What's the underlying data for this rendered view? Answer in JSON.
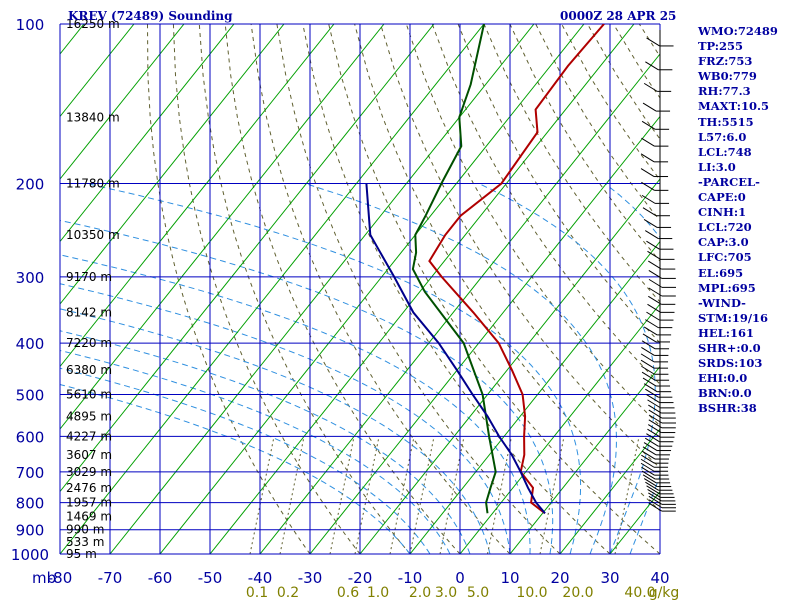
{
  "header": {
    "title": "KREV (72489) Sounding",
    "time": "0000Z 28 APR 25"
  },
  "indices": [
    "WMO:72489",
    "TP:255",
    "FRZ:753",
    "WB0:779",
    "RH:77.3",
    "MAXT:10.5",
    "TH:5515",
    "L57:6.0",
    "LCL:748",
    "LI:3.0",
    "-PARCEL-",
    "CAPE:0",
    "CINH:1",
    "LCL:720",
    "CAP:3.0",
    "LFC:705",
    "EL:695",
    "MPL:695",
    "-WIND-",
    "STM:19/16",
    "HEL:161",
    "SHR+:0.0",
    "SRDS:103",
    "EHI:0.0",
    "BRN:0.0",
    "BSHR:38"
  ],
  "chart_data": {
    "type": "line",
    "title": "KREV (72489) Sounding",
    "xlabel": "",
    "ylabel": "mb",
    "x_unit_label": "g/kg",
    "xlim": [
      -80,
      40
    ],
    "ylim": [
      1000,
      100
    ],
    "x_ticks": [
      -80,
      -70,
      -60,
      -50,
      -40,
      -30,
      -20,
      -10,
      0,
      10,
      20,
      30,
      40
    ],
    "pressure_ticks": [
      100,
      200,
      300,
      400,
      500,
      600,
      700,
      800,
      900,
      1000
    ],
    "mixing_ratio_labels": [
      "0.1",
      "0.2",
      "0.6",
      "1.0",
      "2.0",
      "3.0",
      "5.0",
      "10.0",
      "20.0",
      "40.0"
    ],
    "height_labels": [
      {
        "p": 100,
        "text": "16250 m"
      },
      {
        "p": 150,
        "text": "13840 m"
      },
      {
        "p": 200,
        "text": "11780 m"
      },
      {
        "p": 250,
        "text": "10350 m"
      },
      {
        "p": 300,
        "text": "9170 m"
      },
      {
        "p": 350,
        "text": "8142 m"
      },
      {
        "p": 400,
        "text": "7220 m"
      },
      {
        "p": 450,
        "text": "6380 m"
      },
      {
        "p": 500,
        "text": "5610 m"
      },
      {
        "p": 550,
        "text": "4895 m"
      },
      {
        "p": 600,
        "text": "4227 m"
      },
      {
        "p": 650,
        "text": "3607 m"
      },
      {
        "p": 700,
        "text": "3029 m"
      },
      {
        "p": 750,
        "text": "2476 m"
      },
      {
        "p": 800,
        "text": "1957 m"
      },
      {
        "p": 850,
        "text": "1469 m"
      },
      {
        "p": 900,
        "text": "990 m"
      },
      {
        "p": 950,
        "text": "533 m"
      },
      {
        "p": 1000,
        "text": "95 m"
      }
    ],
    "series": [
      {
        "name": "",
        "color": "#b00000",
        "points": [
          [
            100,
            -56
          ],
          [
            120,
            -56.5
          ],
          [
            145,
            -56
          ],
          [
            160,
            -52
          ],
          [
            200,
            -51
          ],
          [
            230,
            -54
          ],
          [
            250,
            -54
          ],
          [
            280,
            -53
          ],
          [
            300,
            -48
          ],
          [
            350,
            -36
          ],
          [
            400,
            -26
          ],
          [
            450,
            -19
          ],
          [
            500,
            -13
          ],
          [
            550,
            -9
          ],
          [
            600,
            -6
          ],
          [
            650,
            -3
          ],
          [
            700,
            -1
          ],
          [
            750,
            4
          ],
          [
            800,
            6
          ],
          [
            838,
            10.5
          ]
        ]
      },
      {
        "name": "",
        "color": "#005000",
        "points": [
          [
            100,
            -80
          ],
          [
            130,
            -73
          ],
          [
            150,
            -70
          ],
          [
            170,
            -65
          ],
          [
            200,
            -63
          ],
          [
            230,
            -61
          ],
          [
            250,
            -60
          ],
          [
            270,
            -57
          ],
          [
            290,
            -55
          ],
          [
            320,
            -49
          ],
          [
            400,
            -33
          ],
          [
            500,
            -21
          ],
          [
            600,
            -13
          ],
          [
            700,
            -6
          ],
          [
            750,
            -4.5
          ],
          [
            800,
            -3
          ],
          [
            838,
            -1
          ]
        ]
      },
      {
        "name": "",
        "color": "#00008b",
        "points": [
          [
            200,
            -78
          ],
          [
            250,
            -69
          ],
          [
            300,
            -57.5
          ],
          [
            350,
            -48
          ],
          [
            400,
            -38
          ],
          [
            450,
            -30
          ],
          [
            500,
            -23
          ],
          [
            550,
            -16.5
          ],
          [
            600,
            -11
          ],
          [
            650,
            -5.5
          ],
          [
            700,
            -1
          ],
          [
            750,
            3
          ],
          [
            800,
            7
          ],
          [
            838,
            10.5
          ]
        ]
      }
    ],
    "grid": true,
    "legend": "none"
  }
}
